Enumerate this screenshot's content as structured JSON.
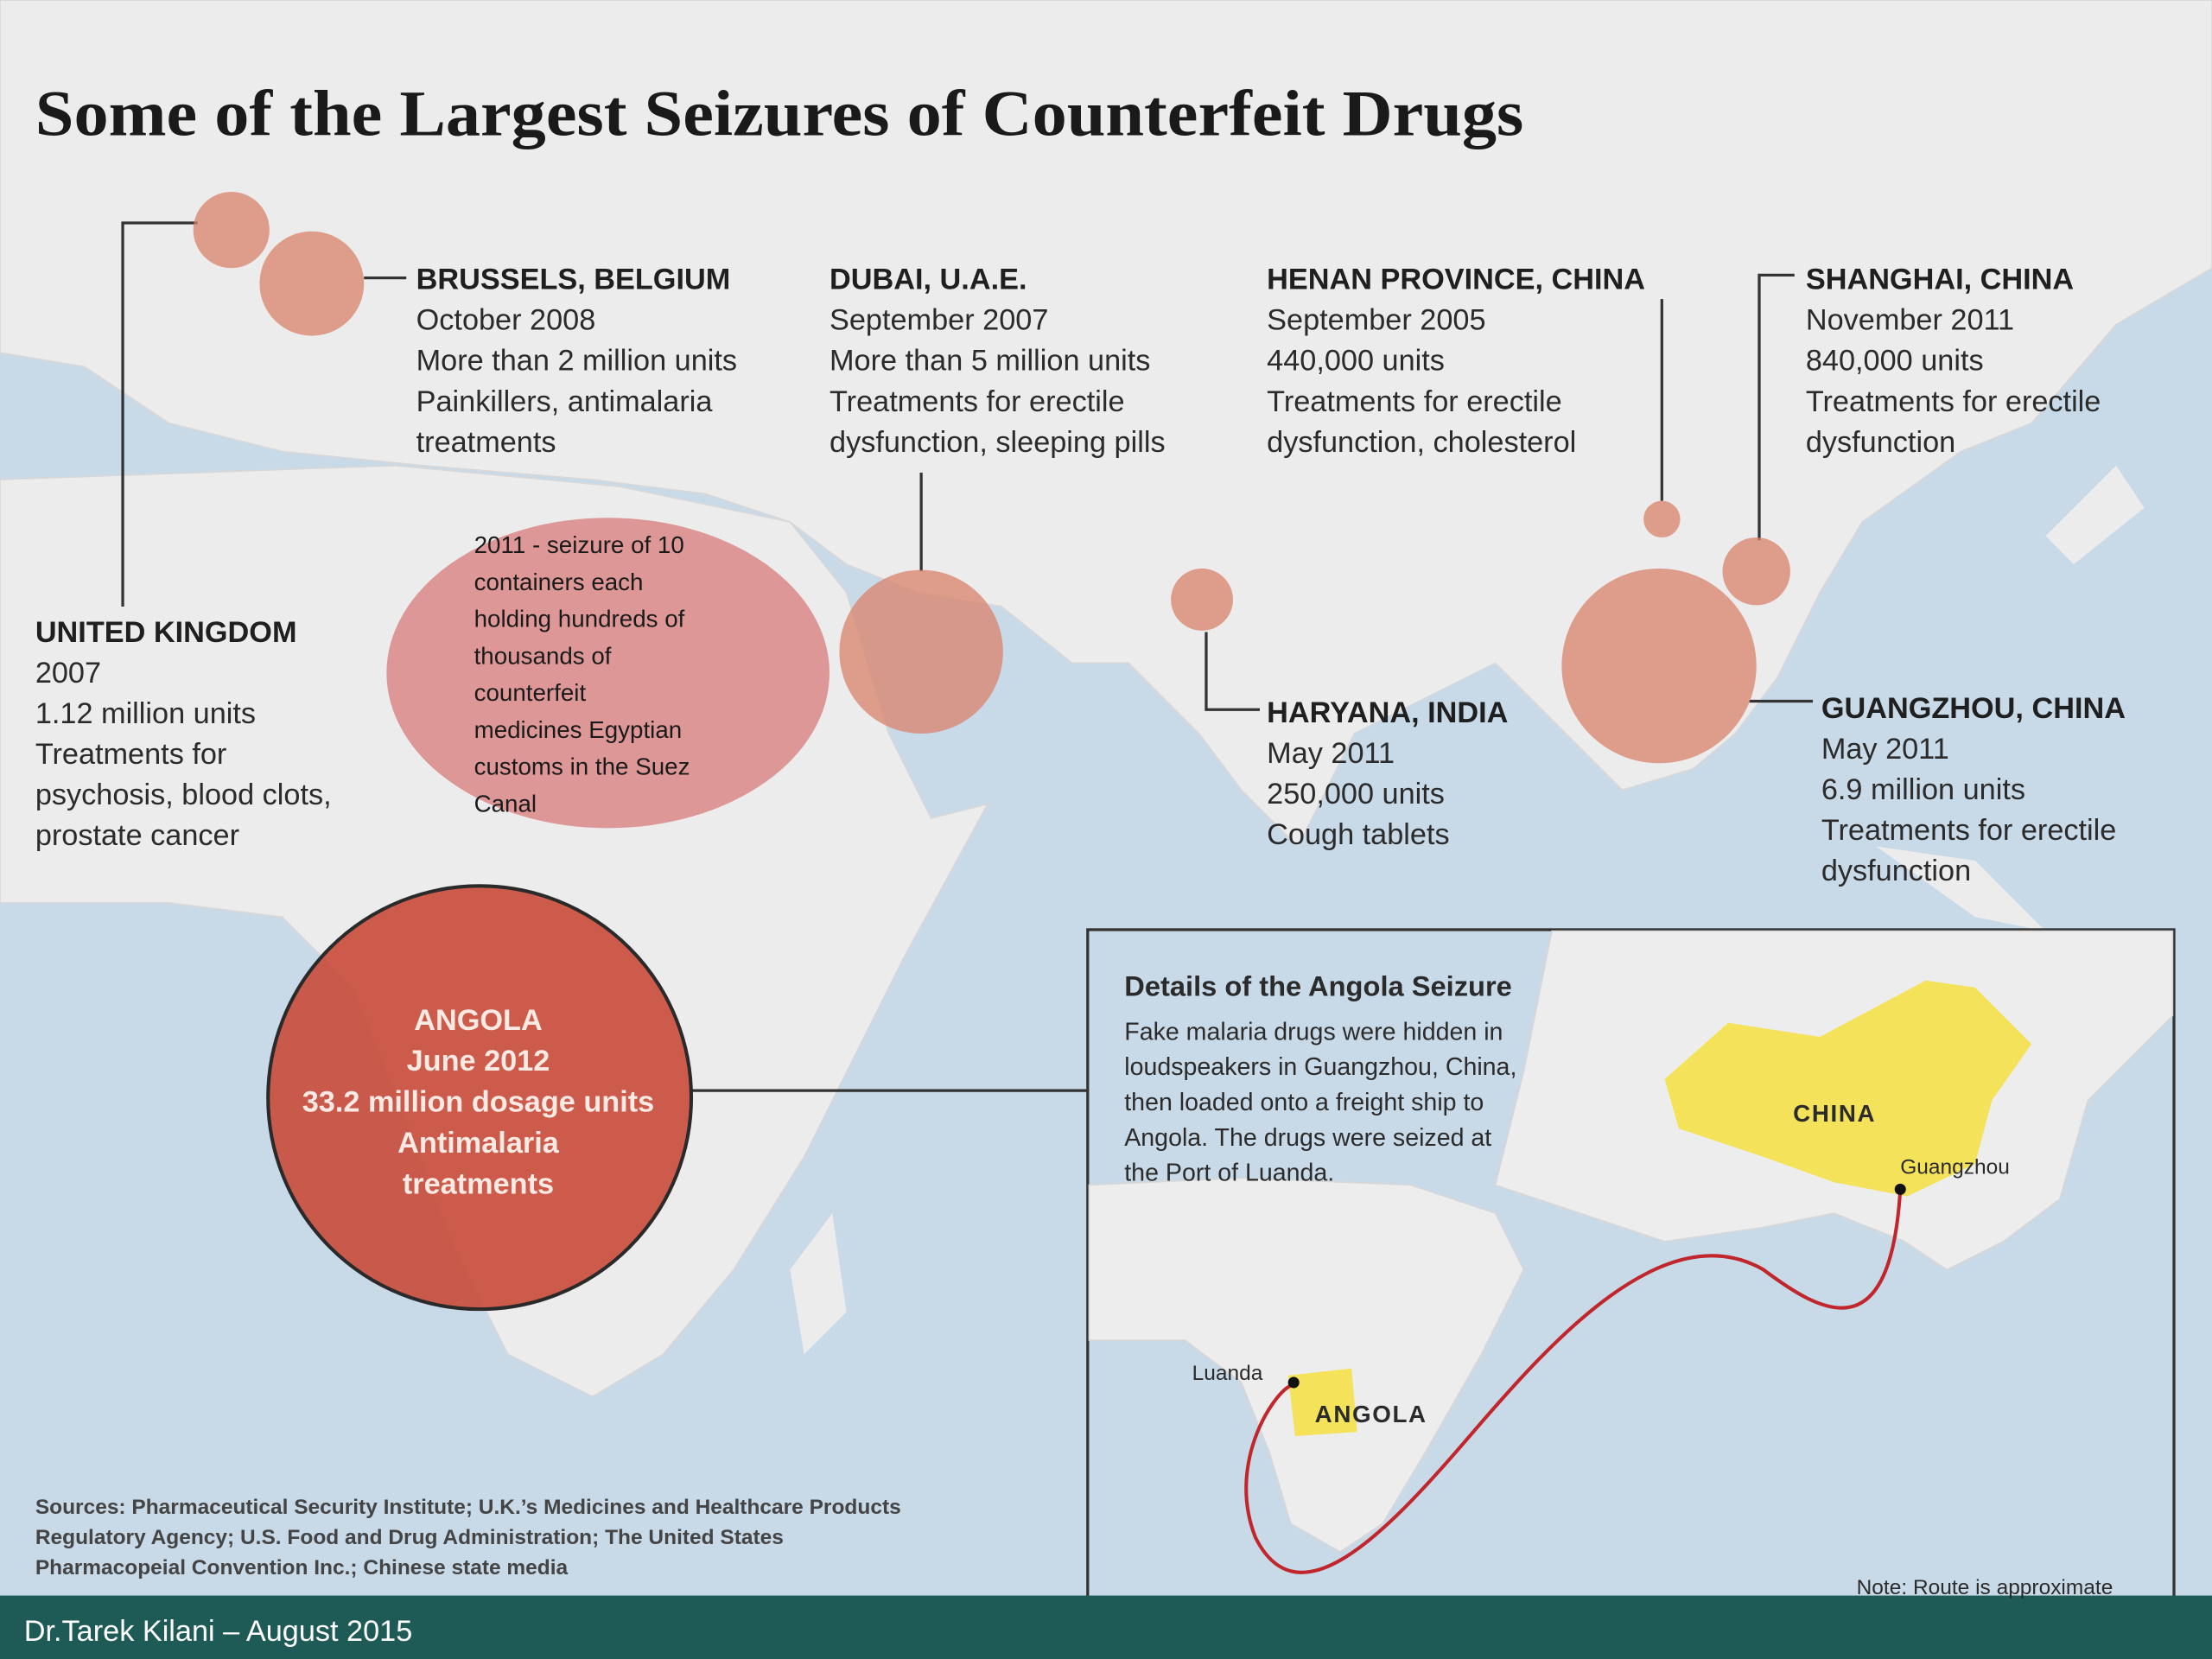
{
  "title": "Some of the Largest Seizures of Counterfeit Drugs",
  "seizures": [
    {
      "lines": [
        "BRUSSELS, BELGIUM",
        "October 2008",
        "More than 2 million units",
        "Painkillers, antimalaria",
        "treatments"
      ]
    },
    {
      "lines": [
        "DUBAI, U.A.E.",
        "September 2007",
        "More than 5 million units",
        "Treatments for erectile",
        "dysfunction, sleeping pills"
      ]
    },
    {
      "lines": [
        "HENAN PROVINCE, CHINA",
        "September 2005",
        "440,000 units",
        "Treatments for erectile",
        "dysfunction, cholesterol"
      ]
    },
    {
      "lines": [
        "SHANGHAI, CHINA",
        "November 2011",
        "840,000 units",
        "Treatments for erectile",
        "dysfunction"
      ]
    },
    {
      "lines": [
        "UNITED KINGDOM",
        "2007",
        "1.12 million units",
        "Treatments for",
        "psychosis, blood clots,",
        "prostate cancer"
      ]
    },
    {
      "lines": [
        "HARYANA, INDIA",
        "May 2011",
        "250,000 units",
        "Cough tablets"
      ]
    },
    {
      "lines": [
        "GUANGZHOU, CHINA",
        "May 2011",
        "6.9 million units",
        "Treatments for erectile",
        "dysfunction"
      ]
    }
  ],
  "angola": {
    "lines": [
      "ANGOLA",
      "June 2012",
      "33.2 million dosage units",
      "Antimalaria",
      "treatments"
    ]
  },
  "note": {
    "lines": [
      "2011 - seizure of 10",
      "containers each",
      "holding hundreds of",
      "thousands of",
      "counterfeit",
      "medicines Egyptian",
      "customs in the Suez",
      "Canal"
    ]
  },
  "inset": {
    "title": "Details of the Angola Seizure",
    "lines": [
      "Fake malaria drugs were hidden in",
      "loudspeakers in Guangzhou, China,",
      "then loaded onto a freight ship to",
      "Angola. The drugs were seized at",
      "the Port of Luanda."
    ],
    "china": "CHINA",
    "guangzhou": "Guangzhou",
    "luanda": "Luanda",
    "angola": "ANGOLA",
    "route_note": "Note: Route is approximate"
  },
  "sources": [
    "Sources: Pharmaceutical Security Institute; U.K.’s Medicines and Healthcare Products",
    "Regulatory Agency; U.S. Food and Drug Administration; The United States",
    "Pharmacopeial Convention Inc.; Chinese state media"
  ],
  "footer": "Dr.Tarek Kilani – August 2015"
}
